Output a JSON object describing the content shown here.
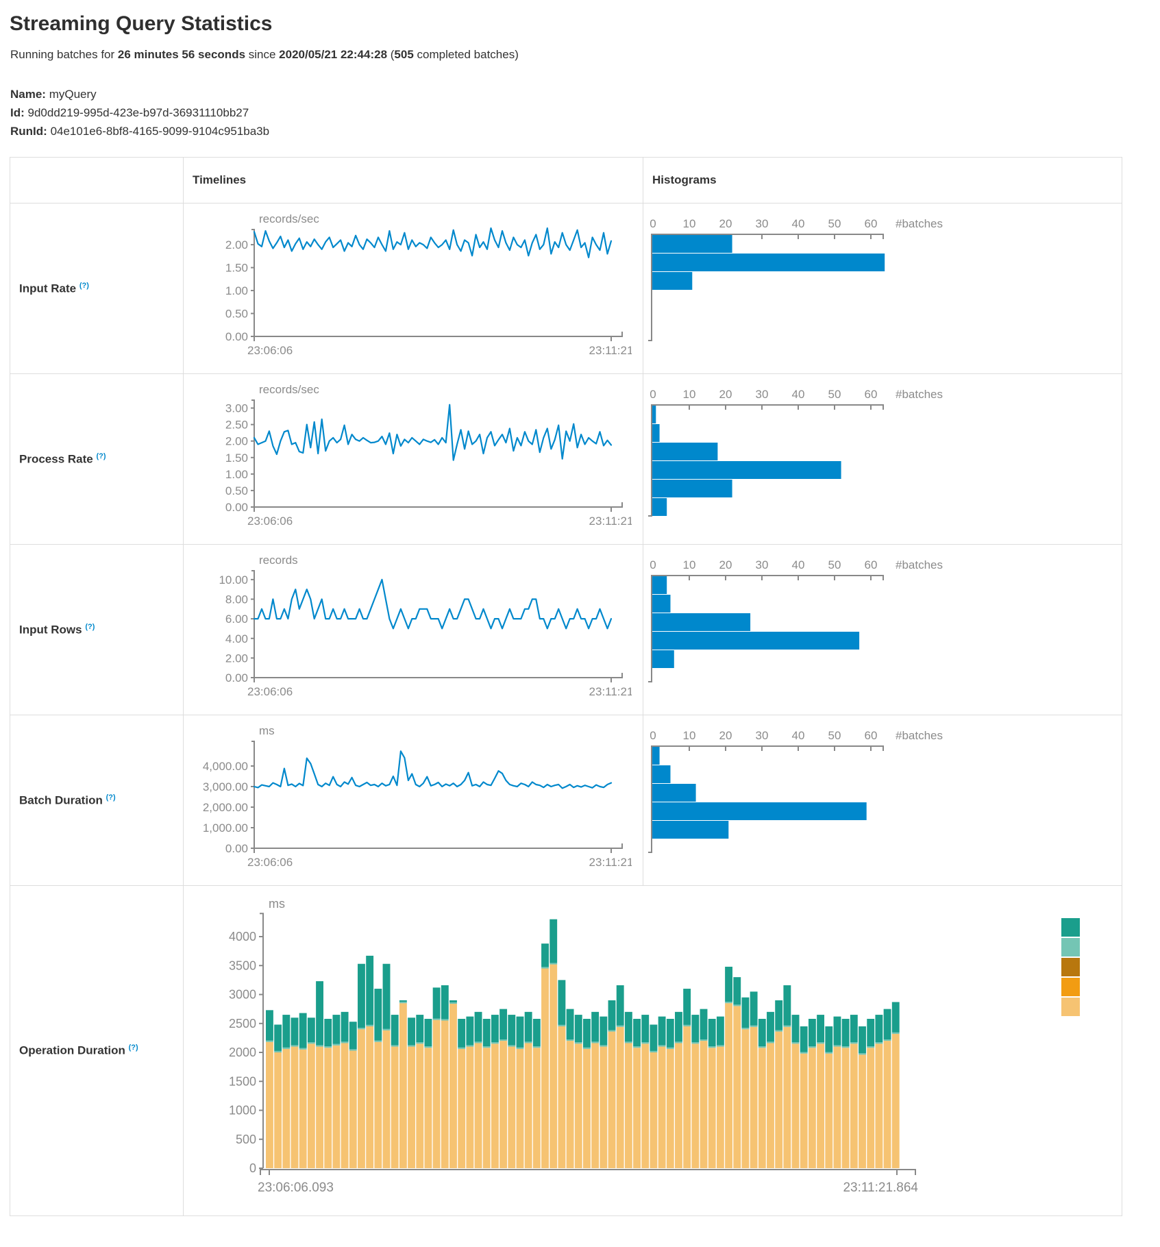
{
  "header": {
    "title": "Streaming Query Statistics",
    "running_prefix": "Running batches for ",
    "duration": "26 minutes 56 seconds",
    "since_text": " since ",
    "start_time": "2020/05/21 22:44:28",
    "batches_open": " (",
    "completed_batches": "505",
    "batches_suffix": " completed batches)",
    "name_label": "Name:",
    "name_value": "myQuery",
    "id_label": "Id:",
    "id_value": "9d0dd219-995d-423e-b97d-36931110bb27",
    "runid_label": "RunId:",
    "runid_value": "04e101e6-8bf8-4165-9099-9104c951ba3b"
  },
  "table": {
    "timelines_header": "Timelines",
    "histograms_header": "Histograms"
  },
  "colors": {
    "line": "#0088cc",
    "hist_bar": "#0088cc",
    "axis": "#888888",
    "tick_text": "#8b8b8b",
    "stack_green": "#1a9e8c",
    "stack_teal": "#74c5b4",
    "stack_brown": "#b8770e",
    "stack_orange": "#f29c12",
    "stack_tan": "#f6c372"
  },
  "chart_data": {
    "rows": [
      {
        "label": "Input Rate",
        "help": "(?)",
        "timeline": {
          "type": "line",
          "title": "records/sec",
          "x_labels": [
            "23:06:06",
            "23:11:21"
          ],
          "y_ticks": [
            {
              "label": "2.00",
              "value": 2
            },
            {
              "label": "1.50",
              "value": 1.5
            },
            {
              "label": "1.00",
              "value": 1
            },
            {
              "label": "0.50",
              "value": 0.5
            },
            {
              "label": "0.00",
              "value": 0
            }
          ],
          "y_max": 2.33,
          "values": [
            2.28,
            2.02,
            1.96,
            2.3,
            2.08,
            1.92,
            2.04,
            2.18,
            1.94,
            2.1,
            1.86,
            2.02,
            2.14,
            1.9,
            2.06,
            1.96,
            2.12,
            2.0,
            1.9,
            2.06,
            2.16,
            1.94,
            2.02,
            2.1,
            1.86,
            2.04,
            1.96,
            2.2,
            2.0,
            1.9,
            2.12,
            2.04,
            1.94,
            2.16,
            2.0,
            1.86,
            2.3,
            1.9,
            2.06,
            2.0,
            2.26,
            1.9,
            2.1,
            1.96,
            2.04,
            2.0,
            1.92,
            2.16,
            2.04,
            1.94,
            2.0,
            2.1,
            1.9,
            2.32,
            2.0,
            1.86,
            2.1,
            2.04,
            1.76,
            2.22,
            1.94,
            2.06,
            1.9,
            2.36,
            2.1,
            1.94,
            2.3,
            2.04,
            1.88,
            2.16,
            2.0,
            1.94,
            2.1,
            1.76,
            2.04,
            2.22,
            1.9,
            2.0,
            2.36,
            1.8,
            2.06,
            1.94,
            2.26,
            2.0,
            1.88,
            2.1,
            2.32,
            1.94,
            2.04,
            1.72,
            2.16,
            2.0,
            1.88,
            2.26,
            1.8,
            2.08
          ]
        },
        "histogram": {
          "type": "bar-horizontal",
          "axis_label": "#batches",
          "x_ticks": [
            "0",
            "10",
            "20",
            "30",
            "40",
            "50",
            "60"
          ],
          "x_max": 63.8,
          "values": [
            22,
            64,
            11
          ]
        }
      },
      {
        "label": "Process Rate",
        "help": "(?)",
        "timeline": {
          "type": "line",
          "title": "records/sec",
          "x_labels": [
            "23:06:06",
            "23:11:21"
          ],
          "y_ticks": [
            {
              "label": "3.00",
              "value": 3
            },
            {
              "label": "2.50",
              "value": 2.5
            },
            {
              "label": "2.00",
              "value": 2
            },
            {
              "label": "1.50",
              "value": 1.5
            },
            {
              "label": "1.00",
              "value": 1
            },
            {
              "label": "0.50",
              "value": 0.5
            },
            {
              "label": "0.00",
              "value": 0
            }
          ],
          "y_max": 3.24,
          "values": [
            2.1,
            1.9,
            1.95,
            2.0,
            2.3,
            1.85,
            1.6,
            2.0,
            2.28,
            2.32,
            1.9,
            1.95,
            1.68,
            1.64,
            2.5,
            1.8,
            2.58,
            1.62,
            2.66,
            1.7,
            2.0,
            2.1,
            1.95,
            2.05,
            2.48,
            1.9,
            2.2,
            2.05,
            2.0,
            2.1,
            2.02,
            1.95,
            1.96,
            2.0,
            2.14,
            1.9,
            2.24,
            1.62,
            2.2,
            1.85,
            2.05,
            1.95,
            2.1,
            2.0,
            1.9,
            2.05,
            2.0,
            1.96,
            2.04,
            1.9,
            2.1,
            1.95,
            3.1,
            1.42,
            1.9,
            2.34,
            1.76,
            2.3,
            1.9,
            2.0,
            2.2,
            1.62,
            2.1,
            2.28,
            1.86,
            2.04,
            2.2,
            1.95,
            2.38,
            1.7,
            2.1,
            1.86,
            2.28,
            2.0,
            1.9,
            2.34,
            1.66,
            2.1,
            2.38,
            1.76,
            2.04,
            2.48,
            1.46,
            2.3,
            2.0,
            2.52,
            1.8,
            2.2,
            1.9,
            2.1,
            2.0,
            1.92,
            2.28,
            1.86,
            2.02,
            1.88
          ]
        },
        "histogram": {
          "type": "bar-horizontal",
          "axis_label": "#batches",
          "x_ticks": [
            "0",
            "10",
            "20",
            "30",
            "40",
            "50",
            "60"
          ],
          "x_max": 63.8,
          "values": [
            1,
            2,
            18,
            52,
            22,
            4
          ]
        }
      },
      {
        "label": "Input Rows",
        "help": "(?)",
        "timeline": {
          "type": "line",
          "title": "records",
          "x_labels": [
            "23:06:06",
            "23:11:21"
          ],
          "y_ticks": [
            {
              "label": "10.00",
              "value": 10
            },
            {
              "label": "8.00",
              "value": 8
            },
            {
              "label": "6.00",
              "value": 6
            },
            {
              "label": "4.00",
              "value": 4
            },
            {
              "label": "2.00",
              "value": 2
            },
            {
              "label": "0.00",
              "value": 0
            }
          ],
          "y_max": 10.9,
          "values": [
            6,
            6,
            7,
            6,
            6,
            8,
            6,
            6,
            7,
            6,
            8,
            9,
            7,
            8,
            9,
            8,
            6,
            7,
            8,
            6,
            6,
            7,
            6,
            6,
            7,
            6,
            6,
            6,
            7,
            6,
            6,
            7,
            8,
            9,
            10,
            8,
            6,
            5,
            6,
            7,
            6,
            5,
            6,
            6,
            7,
            7,
            7,
            6,
            6,
            6,
            5,
            6,
            7,
            6,
            6,
            7,
            8,
            8,
            7,
            6,
            6,
            7,
            6,
            5,
            6,
            6,
            5,
            6,
            7,
            6,
            6,
            6,
            7,
            7,
            8,
            8,
            6,
            6,
            5,
            6,
            6,
            7,
            6,
            5,
            6,
            6,
            7,
            6,
            6,
            5,
            6,
            6,
            7,
            6,
            5,
            6
          ]
        },
        "histogram": {
          "type": "bar-horizontal",
          "axis_label": "#batches",
          "x_ticks": [
            "0",
            "10",
            "20",
            "30",
            "40",
            "50",
            "60"
          ],
          "x_max": 63.8,
          "values": [
            4,
            5,
            27,
            57,
            6
          ]
        }
      },
      {
        "label": "Batch Duration",
        "help": "(?)",
        "timeline": {
          "type": "line",
          "title": "ms",
          "x_labels": [
            "23:06:06",
            "23:11:21"
          ],
          "y_ticks": [
            {
              "label": "4,000.00",
              "value": 4000
            },
            {
              "label": "3,000.00",
              "value": 3000
            },
            {
              "label": "2,000.00",
              "value": 2000
            },
            {
              "label": "1,000.00",
              "value": 1000
            },
            {
              "label": "0.00",
              "value": 0
            }
          ],
          "y_max": 5200,
          "values": [
            3000,
            2950,
            3080,
            3040,
            3000,
            3180,
            3100,
            3000,
            3880,
            3060,
            3120,
            3000,
            3150,
            3050,
            4380,
            4120,
            3620,
            3100,
            3000,
            3160,
            3060,
            3480,
            3100,
            3000,
            3220,
            3120,
            3440,
            3060,
            3000,
            3100,
            3200,
            3060,
            3100,
            3000,
            3160,
            3040,
            3100,
            3500,
            3060,
            4720,
            4400,
            3300,
            3620,
            3100,
            3000,
            3160,
            3480,
            3040,
            3100,
            3200,
            3000,
            3120,
            3040,
            3160,
            3000,
            3100,
            3300,
            3680,
            3040,
            3100,
            3000,
            3220,
            3100,
            3060,
            3400,
            3760,
            3640,
            3300,
            3100,
            3040,
            3000,
            3160,
            3100,
            3000,
            3220,
            3100,
            3060,
            2960,
            3100,
            3000,
            3060,
            3100,
            2920,
            3000,
            3100,
            2960,
            3040,
            2980,
            3060,
            3000,
            2940,
            3080,
            3000,
            2960,
            3100,
            3180
          ]
        },
        "histogram": {
          "type": "bar-horizontal",
          "axis_label": "#batches",
          "x_ticks": [
            "0",
            "10",
            "20",
            "30",
            "40",
            "50",
            "60"
          ],
          "x_max": 63.8,
          "values": [
            2,
            5,
            12,
            59,
            21
          ]
        }
      },
      {
        "label": "Operation Duration",
        "help": "(?)",
        "stacked": {
          "type": "stacked-bar",
          "title": "ms",
          "x_labels": [
            "23:06:06.093",
            "23:11:21.864"
          ],
          "y_ticks": [
            {
              "label": "4000",
              "value": 4000
            },
            {
              "label": "3500",
              "value": 3500
            },
            {
              "label": "3000",
              "value": 3000
            },
            {
              "label": "2500",
              "value": 2500
            },
            {
              "label": "2000",
              "value": 2000
            },
            {
              "label": "1500",
              "value": 1500
            },
            {
              "label": "1000",
              "value": 1000
            },
            {
              "label": "500",
              "value": 500
            },
            {
              "label": "0",
              "value": 0
            }
          ],
          "y_max": 4400,
          "middle_value": 25,
          "bottom_values": [
            2180,
            2000,
            2060,
            2100,
            2050,
            2150,
            2100,
            2080,
            2120,
            2160,
            2030,
            2400,
            2450,
            2180,
            2380,
            2100,
            2850,
            2100,
            2150,
            2080,
            2560,
            2550,
            2840,
            2060,
            2100,
            2160,
            2080,
            2150,
            2200,
            2100,
            2060,
            2160,
            2080,
            3450,
            3520,
            2450,
            2200,
            2150,
            2060,
            2160,
            2100,
            2360,
            2440,
            2160,
            2080,
            2150,
            2000,
            2100,
            2060,
            2160,
            2450,
            2150,
            2200,
            2080,
            2100,
            2850,
            2800,
            2400,
            2440,
            2080,
            2160,
            2360,
            2440,
            2150,
            1980,
            2080,
            2150,
            1980,
            2100,
            2080,
            2150,
            1960,
            2080,
            2150,
            2200,
            2320
          ],
          "total_values": [
            2730,
            2480,
            2650,
            2600,
            2680,
            2600,
            3230,
            2580,
            2650,
            2700,
            2530,
            3530,
            3670,
            3100,
            3530,
            2650,
            2900,
            2600,
            2650,
            2580,
            3120,
            3160,
            2900,
            2580,
            2620,
            2700,
            2580,
            2650,
            2750,
            2650,
            2620,
            2700,
            2580,
            3880,
            4300,
            3250,
            2750,
            2650,
            2580,
            2700,
            2620,
            2900,
            3160,
            2700,
            2580,
            2650,
            2480,
            2620,
            2580,
            2700,
            3100,
            2650,
            2750,
            2580,
            2620,
            3480,
            3300,
            2950,
            3050,
            2580,
            2700,
            2900,
            3160,
            2650,
            2450,
            2580,
            2650,
            2450,
            2620,
            2580,
            2650,
            2450,
            2580,
            2650,
            2750,
            2870
          ],
          "legend_colors": [
            "#1a9e8c",
            "#74c5b4",
            "#b8770e",
            "#f29c12",
            "#f6c372"
          ]
        }
      }
    ]
  }
}
